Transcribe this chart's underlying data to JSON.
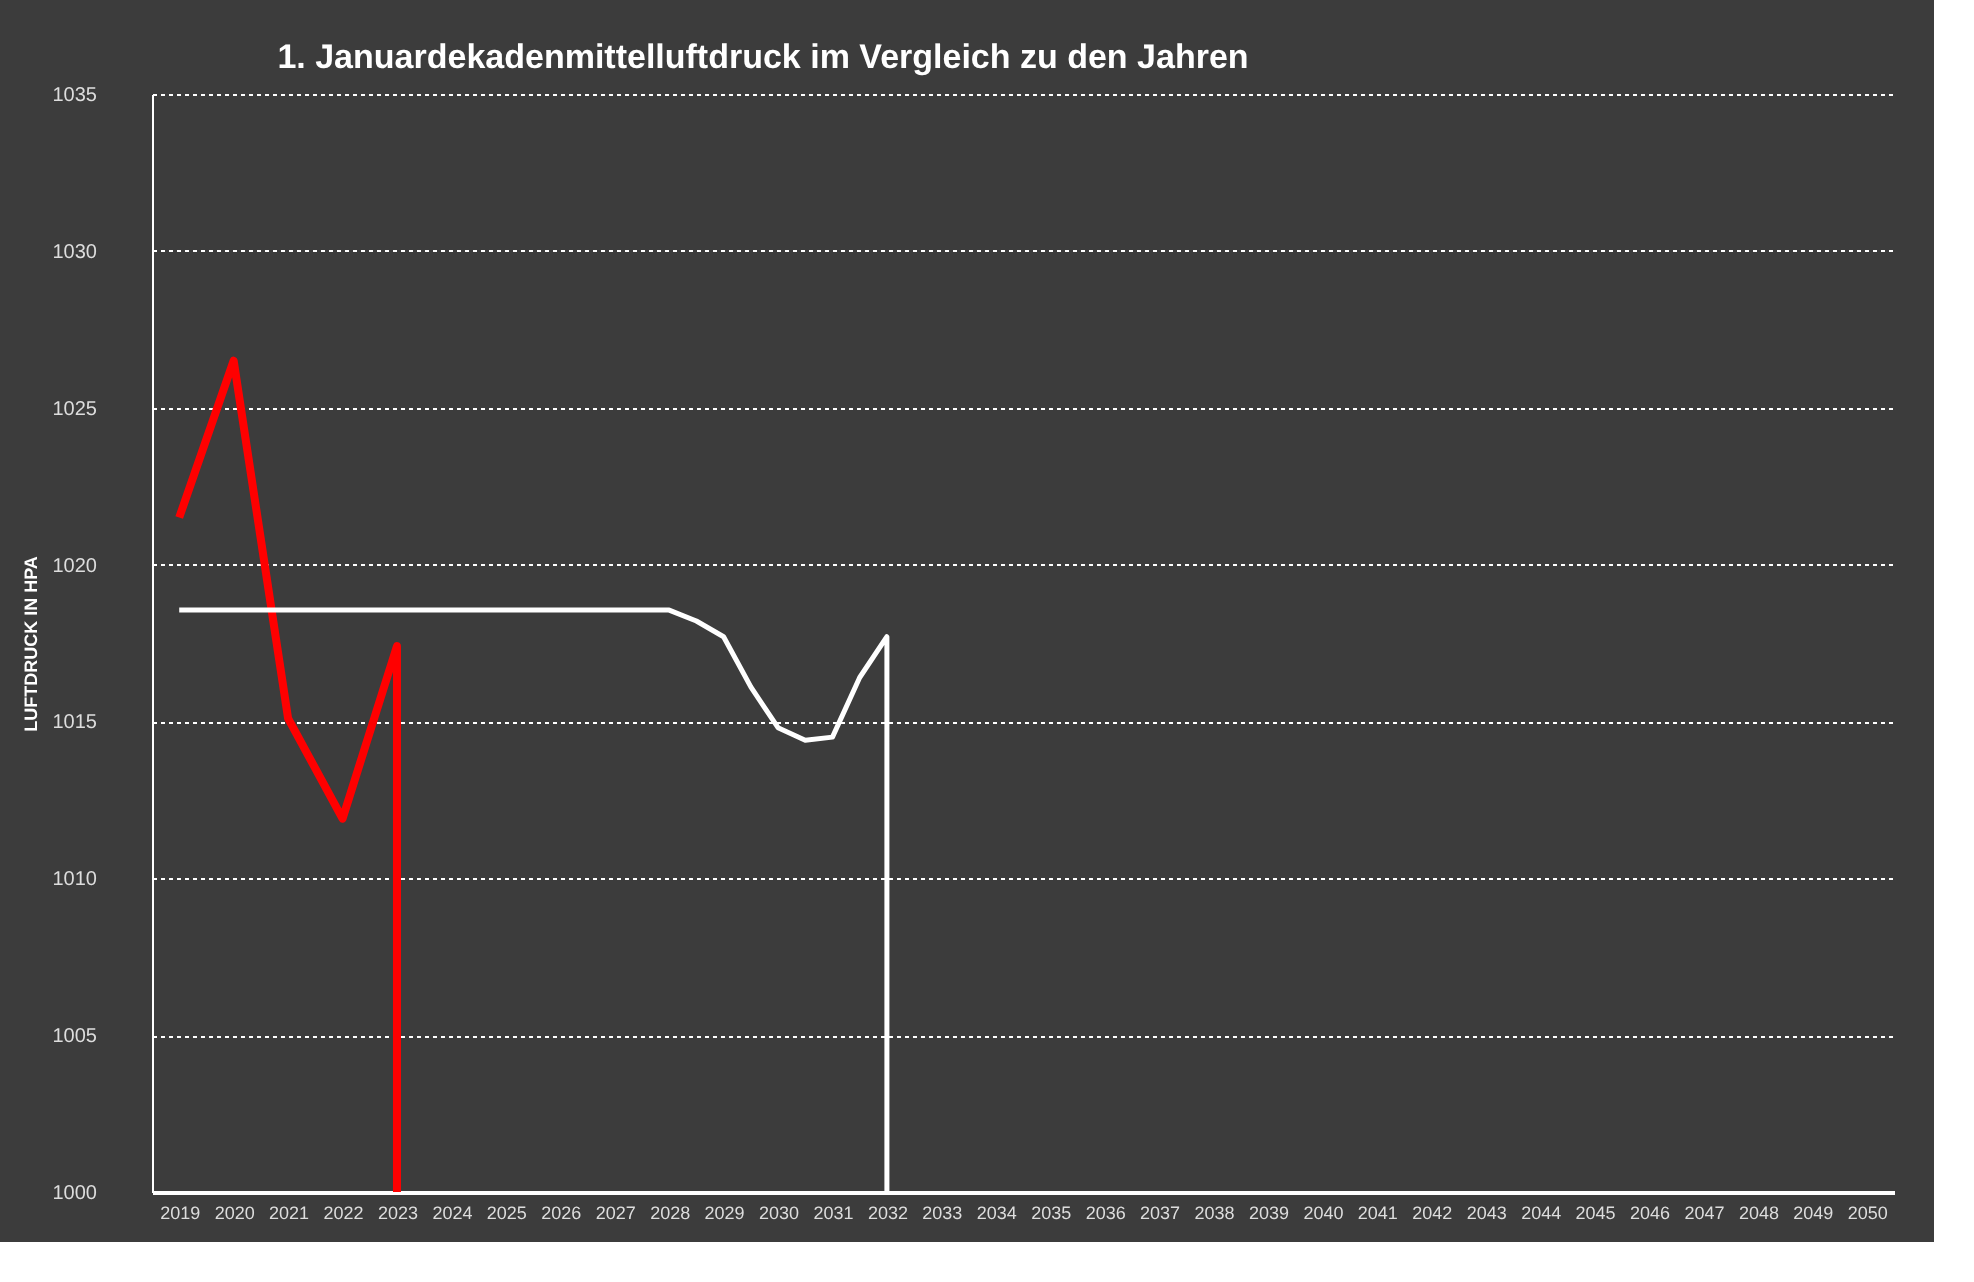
{
  "chart_data": {
    "type": "line",
    "title": "1. Januardekadenmittelluftdruck  im Vergleich zu den Jahren",
    "ylabel": "LUFTDRUCK IN HPA",
    "xlim": [
      2018.5,
      2050.5
    ],
    "xticks": [
      2019,
      2020,
      2021,
      2022,
      2023,
      2024,
      2025,
      2026,
      2027,
      2028,
      2029,
      2030,
      2031,
      2032,
      2033,
      2034,
      2035,
      2036,
      2037,
      2038,
      2039,
      2040,
      2041,
      2042,
      2043,
      2044,
      2045,
      2046,
      2047,
      2048,
      2049,
      2050
    ],
    "ylim": [
      1000,
      1035
    ],
    "yticks": [
      1000,
      1005,
      1010,
      1015,
      1020,
      1025,
      1030,
      1035
    ],
    "grid": "y",
    "line_style": "solid",
    "marker": "none",
    "series": [
      {
        "color": "#ff0000",
        "x": [
          2019,
          2020,
          2021,
          2022,
          2023,
          2023
        ],
        "values": [
          1021.5,
          1026.5,
          1015.1,
          1011.9,
          1017.4,
          1000
        ]
      },
      {
        "color": "#ffffff",
        "x": [
          2019,
          2028,
          2028.5,
          2029,
          2029.5,
          2030,
          2030.5,
          2031,
          2031.5,
          2032,
          2032
        ],
        "values": [
          1018.55,
          1018.55,
          1018.2,
          1017.7,
          1016.1,
          1014.8,
          1014.4,
          1014.5,
          1016.4,
          1017.7,
          1000
        ]
      }
    ]
  }
}
